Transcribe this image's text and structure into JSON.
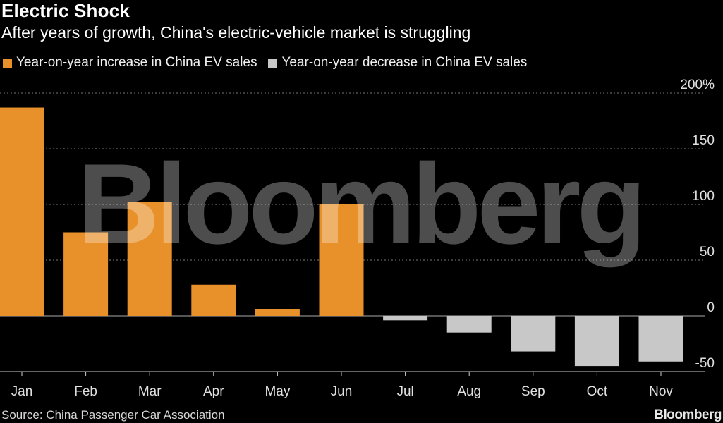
{
  "header": {
    "title": "Electric Shock",
    "subtitle": "After years of growth, China's electric-vehicle market is struggling"
  },
  "footer": {
    "source": "Source: China Passenger Car Association",
    "brand": "Bloomberg"
  },
  "watermark": "Bloomberg",
  "colors": {
    "increase": "#e8912a",
    "decrease": "#c8c8c8",
    "background": "#000000",
    "grid": "#777777"
  },
  "chart_data": {
    "type": "bar",
    "categories": [
      "Jan",
      "Feb",
      "Mar",
      "Apr",
      "May",
      "Jun",
      "Jul",
      "Aug",
      "Sep",
      "Oct",
      "Nov"
    ],
    "values": [
      187,
      75,
      102,
      28,
      6,
      100,
      -4,
      -15,
      -32,
      -45,
      -41
    ],
    "series": [
      {
        "name": "Year-on-year increase in China EV sales",
        "color": "#e8912a"
      },
      {
        "name": "Year-on-year decrease in China EV sales",
        "color": "#c8c8c8"
      }
    ],
    "y_ticks": [
      -50,
      0,
      50,
      100,
      150,
      200
    ],
    "y_tick_labels": [
      "-50",
      "0",
      "50",
      "100",
      "150",
      "200%"
    ],
    "ylim": [
      -50,
      200
    ],
    "grid": true,
    "legend_position": "top-left",
    "y_axis_position": "right"
  }
}
